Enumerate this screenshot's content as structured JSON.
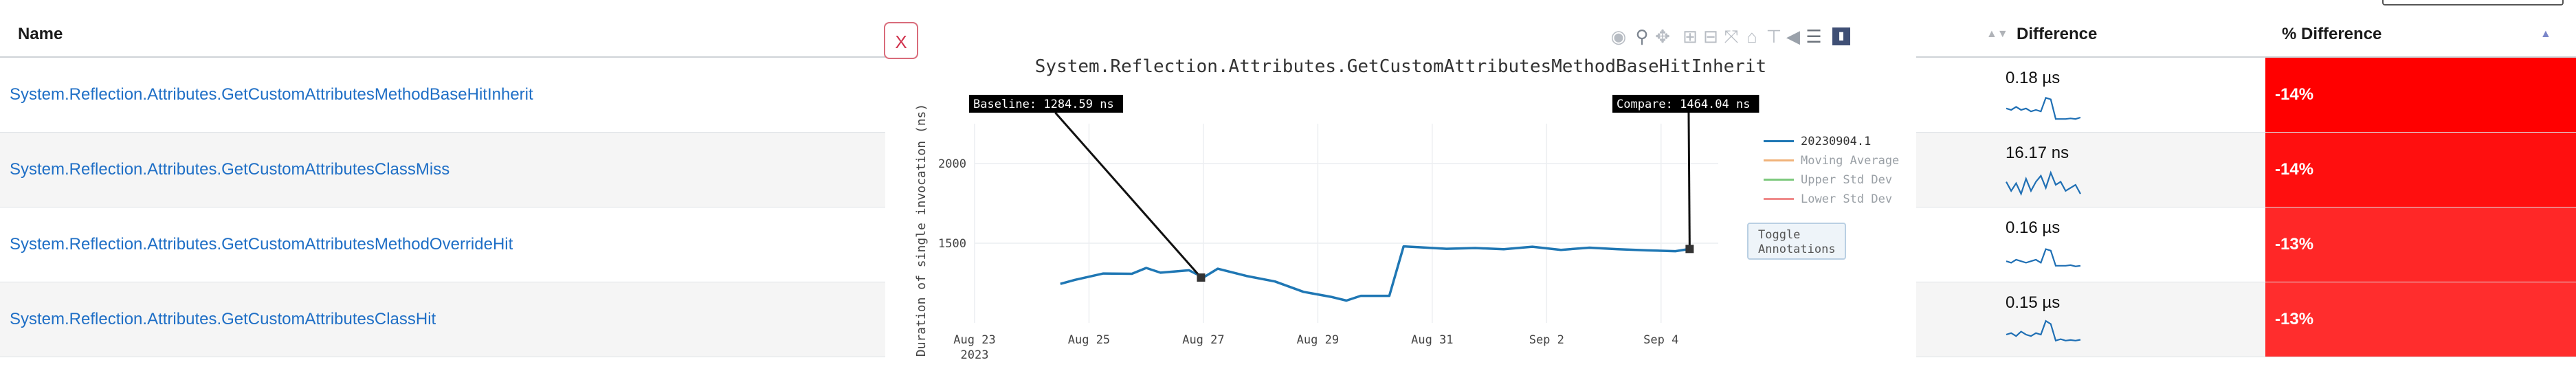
{
  "table": {
    "headers": {
      "name": "Name",
      "difference": "Difference",
      "pct_difference": "% Difference"
    },
    "rows": [
      {
        "name": "System.Reflection.Attributes.GetCustomAttributesMethodBaseHitInherit",
        "difference": "0.18 µs",
        "pct": "-14%",
        "pct_color": "#ff0000",
        "spark": [
          0.55,
          0.5,
          0.6,
          0.5,
          0.55,
          0.45,
          0.5,
          0.45,
          0.9,
          0.85,
          0.2,
          0.2,
          0.2,
          0.22,
          0.2,
          0.25
        ]
      },
      {
        "name": "System.Reflection.Attributes.GetCustomAttributesClassMiss",
        "difference": "16.17 ns",
        "pct": "-14%",
        "pct_color": "#ff0f0f",
        "spark": [
          0.6,
          0.3,
          0.55,
          0.2,
          0.7,
          0.3,
          0.6,
          0.8,
          0.4,
          0.9,
          0.5,
          0.6,
          0.3,
          0.4,
          0.5,
          0.2
        ]
      },
      {
        "name": "System.Reflection.Attributes.GetCustomAttributesMethodOverrideHit",
        "difference": "0.16 µs",
        "pct": "-13%",
        "pct_color": "#ff2727",
        "spark": [
          0.45,
          0.4,
          0.5,
          0.45,
          0.4,
          0.45,
          0.5,
          0.4,
          0.85,
          0.8,
          0.3,
          0.3,
          0.3,
          0.32,
          0.28,
          0.3
        ]
      },
      {
        "name": "System.Reflection.Attributes.GetCustomAttributesClassHit",
        "difference": "0.15 µs",
        "pct": "-13%",
        "pct_color": "#ff2d2d",
        "spark": [
          0.5,
          0.55,
          0.45,
          0.6,
          0.5,
          0.45,
          0.55,
          0.5,
          0.95,
          0.85,
          0.3,
          0.35,
          0.3,
          0.32,
          0.3,
          0.33
        ]
      }
    ]
  },
  "modal": {
    "close_label": "X",
    "toggle_label": "Toggle Annotations",
    "modebar_icons": [
      "camera-icon",
      "zoom-icon",
      "pan-icon",
      "zoom-in-icon",
      "zoom-out-icon",
      "autoscale-icon",
      "home-icon",
      "spike-lines-icon",
      "hover-closest-icon",
      "hover-compare-icon",
      "plotly-logo-icon"
    ]
  },
  "chart_data": {
    "type": "line",
    "title": "System.Reflection.Attributes.GetCustomAttributesMethodBaseHitInherit",
    "xlabel": "",
    "ylabel": "Duration of single invocation (ns)",
    "x_ticks": [
      "Aug 23\n2023",
      "Aug 25",
      "Aug 27",
      "Aug 29",
      "Aug 31",
      "Sep 2",
      "Sep 4"
    ],
    "y_ticks": [
      1500,
      2000
    ],
    "xlim": [
      "2023-08-23",
      "2023-09-05"
    ],
    "ylim": [
      1000,
      2250
    ],
    "grid": true,
    "legend_position": "right",
    "series": [
      {
        "name": "20230904.1",
        "color": "#1f77b4",
        "x": [
          "2023-08-24T12",
          "2023-08-24T18",
          "2023-08-25T06",
          "2023-08-25T18",
          "2023-08-26T00",
          "2023-08-26T06",
          "2023-08-26T18",
          "2023-08-27T00",
          "2023-08-27T06",
          "2023-08-27T18",
          "2023-08-28T06",
          "2023-08-28T18",
          "2023-08-29T06",
          "2023-08-29T12",
          "2023-08-29T18",
          "2023-08-30T06",
          "2023-08-30T12",
          "2023-08-30T18",
          "2023-08-31T06",
          "2023-08-31T18",
          "2023-09-01T06",
          "2023-09-01T18",
          "2023-09-02T06",
          "2023-09-02T18",
          "2023-09-03T06",
          "2023-09-03T18",
          "2023-09-04T06",
          "2023-09-04T12"
        ],
        "values": [
          1245,
          1270,
          1310,
          1308,
          1345,
          1315,
          1330,
          1285,
          1340,
          1295,
          1260,
          1195,
          1162,
          1140,
          1170,
          1170,
          1480,
          1475,
          1465,
          1470,
          1462,
          1478,
          1458,
          1472,
          1462,
          1455,
          1450,
          1464
        ]
      },
      {
        "name": "Moving Average",
        "color": "#f0b27a",
        "values": []
      },
      {
        "name": "Upper Std Dev",
        "color": "#7dc97d",
        "values": []
      },
      {
        "name": "Lower Std Dev",
        "color": "#ef8a8a",
        "values": []
      }
    ],
    "annotations": [
      {
        "text": "Baseline: 1284.59 ns",
        "x": "2023-08-26T23",
        "y": 1284.59
      },
      {
        "text": "Compare: 1464.04 ns",
        "x": "2023-09-04T12",
        "y": 1464.04
      }
    ]
  }
}
